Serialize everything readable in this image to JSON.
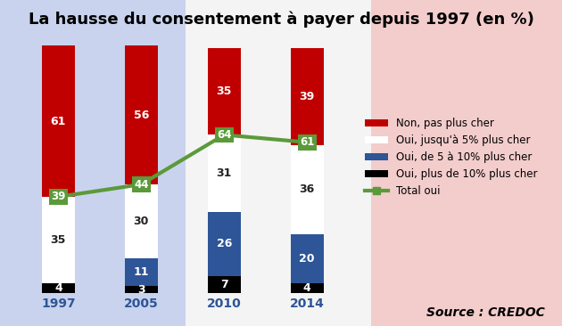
{
  "chart_data": {
    "type": "bar",
    "title": "La hausse du consentement à payer depuis 1997 (en %)",
    "source": "Source : CREDOC",
    "categories": [
      "1997",
      "2005",
      "2010",
      "2014"
    ],
    "stacked": true,
    "data_labels": true,
    "tick_labels": "x",
    "legend": "center left",
    "ylim": [
      0,
      100
    ],
    "series": [
      {
        "name": "Non, pas plus cher",
        "type": "bar",
        "color": "#c00000",
        "values": [
          61,
          56,
          35,
          39
        ]
      },
      {
        "name": "Oui, jusqu'à 5% plus cher",
        "type": "bar",
        "color": "#ffffff",
        "values": [
          35,
          30,
          31,
          36
        ]
      },
      {
        "name": "Oui, de 5 à 10% plus cher",
        "type": "bar",
        "color": "#2e5597",
        "values": [
          null,
          11,
          26,
          20
        ]
      },
      {
        "name": "Oui, plus de 10% plus cher",
        "type": "bar",
        "color": "#000000",
        "values": [
          4,
          3,
          7,
          4
        ]
      },
      {
        "name": "Total oui",
        "type": "line",
        "color": "#5b9a3a",
        "marker": "s",
        "line_style": "solid",
        "values": [
          39,
          44,
          64,
          61
        ]
      }
    ]
  }
}
